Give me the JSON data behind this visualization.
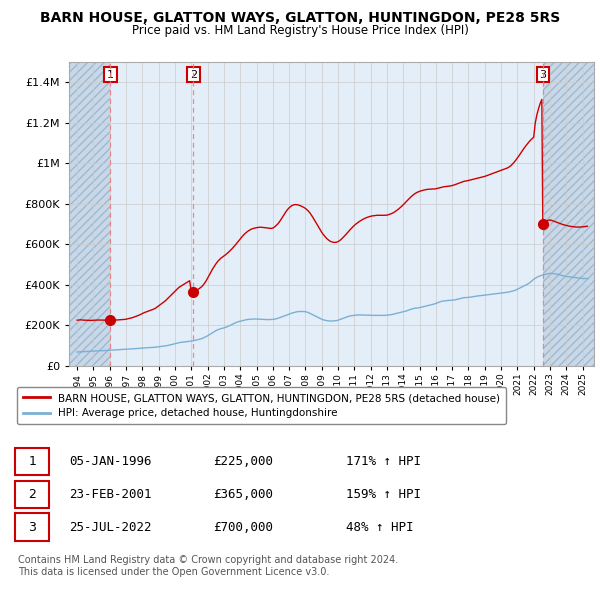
{
  "title": "BARN HOUSE, GLATTON WAYS, GLATTON, HUNTINGDON, PE28 5RS",
  "subtitle": "Price paid vs. HM Land Registry's House Price Index (HPI)",
  "title_fontsize": 10,
  "subtitle_fontsize": 8.5,
  "ylim": [
    0,
    1500000
  ],
  "yticks": [
    0,
    200000,
    400000,
    600000,
    800000,
    1000000,
    1200000,
    1400000
  ],
  "ytick_labels": [
    "£0",
    "£200K",
    "£400K",
    "£600K",
    "£800K",
    "£1M",
    "£1.2M",
    "£1.4M"
  ],
  "xlim_start": 1993.5,
  "xlim_end": 2025.7,
  "sale_dates": [
    1996.03,
    2001.12,
    2022.56
  ],
  "sale_prices": [
    225000,
    365000,
    700000
  ],
  "sale_labels": [
    "1",
    "2",
    "3"
  ],
  "red_line_color": "#cc0000",
  "blue_line_color": "#7ab0d4",
  "dashed_line_color": "#e88080",
  "hatch_color": "#c8d8e8",
  "active_bg_color": "#e4eef8",
  "annotation_box_color": "#cc0000",
  "legend_red_label": "BARN HOUSE, GLATTON WAYS, GLATTON, HUNTINGDON, PE28 5RS (detached house)",
  "legend_blue_label": "HPI: Average price, detached house, Huntingdonshire",
  "table_rows": [
    [
      "1",
      "05-JAN-1996",
      "£225,000",
      "171% ↑ HPI"
    ],
    [
      "2",
      "23-FEB-2001",
      "£365,000",
      "159% ↑ HPI"
    ],
    [
      "3",
      "25-JUL-2022",
      "£700,000",
      "48% ↑ HPI"
    ]
  ],
  "footer_text": "Contains HM Land Registry data © Crown copyright and database right 2024.\nThis data is licensed under the Open Government Licence v3.0.",
  "hpi_x": [
    1994.0,
    1994.1,
    1994.2,
    1994.3,
    1994.4,
    1994.5,
    1994.6,
    1994.7,
    1994.8,
    1994.9,
    1995.0,
    1995.1,
    1995.2,
    1995.3,
    1995.4,
    1995.5,
    1995.6,
    1995.7,
    1995.8,
    1995.9,
    1996.0,
    1996.1,
    1996.2,
    1996.3,
    1996.4,
    1996.5,
    1996.6,
    1996.7,
    1996.8,
    1996.9,
    1997.0,
    1997.1,
    1997.2,
    1997.3,
    1997.4,
    1997.5,
    1997.6,
    1997.7,
    1997.8,
    1997.9,
    1998.0,
    1998.1,
    1998.2,
    1998.3,
    1998.4,
    1998.5,
    1998.6,
    1998.7,
    1998.8,
    1998.9,
    1999.0,
    1999.1,
    1999.2,
    1999.3,
    1999.4,
    1999.5,
    1999.6,
    1999.7,
    1999.8,
    1999.9,
    2000.0,
    2000.1,
    2000.2,
    2000.3,
    2000.4,
    2000.5,
    2000.6,
    2000.7,
    2000.8,
    2000.9,
    2001.0,
    2001.1,
    2001.2,
    2001.3,
    2001.4,
    2001.5,
    2001.6,
    2001.7,
    2001.8,
    2001.9,
    2002.0,
    2002.1,
    2002.2,
    2002.3,
    2002.4,
    2002.5,
    2002.6,
    2002.7,
    2002.8,
    2002.9,
    2003.0,
    2003.1,
    2003.2,
    2003.3,
    2003.4,
    2003.5,
    2003.6,
    2003.7,
    2003.8,
    2003.9,
    2004.0,
    2004.1,
    2004.2,
    2004.3,
    2004.4,
    2004.5,
    2004.6,
    2004.7,
    2004.8,
    2004.9,
    2005.0,
    2005.1,
    2005.2,
    2005.3,
    2005.4,
    2005.5,
    2005.6,
    2005.7,
    2005.8,
    2005.9,
    2006.0,
    2006.1,
    2006.2,
    2006.3,
    2006.4,
    2006.5,
    2006.6,
    2006.7,
    2006.8,
    2006.9,
    2007.0,
    2007.1,
    2007.2,
    2007.3,
    2007.4,
    2007.5,
    2007.6,
    2007.7,
    2007.8,
    2007.9,
    2008.0,
    2008.1,
    2008.2,
    2008.3,
    2008.4,
    2008.5,
    2008.6,
    2008.7,
    2008.8,
    2008.9,
    2009.0,
    2009.1,
    2009.2,
    2009.3,
    2009.4,
    2009.5,
    2009.6,
    2009.7,
    2009.8,
    2009.9,
    2010.0,
    2010.1,
    2010.2,
    2010.3,
    2010.4,
    2010.5,
    2010.6,
    2010.7,
    2010.8,
    2010.9,
    2011.0,
    2011.1,
    2011.2,
    2011.3,
    2011.4,
    2011.5,
    2011.6,
    2011.7,
    2011.8,
    2011.9,
    2012.0,
    2012.1,
    2012.2,
    2012.3,
    2012.4,
    2012.5,
    2012.6,
    2012.7,
    2012.8,
    2012.9,
    2013.0,
    2013.1,
    2013.2,
    2013.3,
    2013.4,
    2013.5,
    2013.6,
    2013.7,
    2013.8,
    2013.9,
    2014.0,
    2014.1,
    2014.2,
    2014.3,
    2014.4,
    2014.5,
    2014.6,
    2014.7,
    2014.8,
    2014.9,
    2015.0,
    2015.1,
    2015.2,
    2015.3,
    2015.4,
    2015.5,
    2015.6,
    2015.7,
    2015.8,
    2015.9,
    2016.0,
    2016.1,
    2016.2,
    2016.3,
    2016.4,
    2016.5,
    2016.6,
    2016.7,
    2016.8,
    2016.9,
    2017.0,
    2017.1,
    2017.2,
    2017.3,
    2017.4,
    2017.5,
    2017.6,
    2017.7,
    2017.8,
    2017.9,
    2018.0,
    2018.1,
    2018.2,
    2018.3,
    2018.4,
    2018.5,
    2018.6,
    2018.7,
    2018.8,
    2018.9,
    2019.0,
    2019.1,
    2019.2,
    2019.3,
    2019.4,
    2019.5,
    2019.6,
    2019.7,
    2019.8,
    2019.9,
    2020.0,
    2020.1,
    2020.2,
    2020.3,
    2020.4,
    2020.5,
    2020.6,
    2020.7,
    2020.8,
    2020.9,
    2021.0,
    2021.1,
    2021.2,
    2021.3,
    2021.4,
    2021.5,
    2021.6,
    2021.7,
    2021.8,
    2021.9,
    2022.0,
    2022.1,
    2022.2,
    2022.3,
    2022.4,
    2022.5,
    2022.6,
    2022.7,
    2022.8,
    2022.9,
    2023.0,
    2023.1,
    2023.2,
    2023.3,
    2023.4,
    2023.5,
    2023.6,
    2023.7,
    2023.8,
    2023.9,
    2024.0,
    2024.1,
    2024.2,
    2024.3,
    2024.4,
    2024.5,
    2024.6,
    2024.7,
    2024.8,
    2024.9,
    2025.0,
    2025.1,
    2025.2,
    2025.3
  ],
  "hpi_y": [
    68000,
    68500,
    69000,
    69500,
    70000,
    70500,
    71000,
    71500,
    72000,
    72500,
    73000,
    73500,
    74000,
    74000,
    74200,
    74500,
    74800,
    75200,
    75700,
    76500,
    77000,
    77500,
    78000,
    78500,
    79000,
    79500,
    80000,
    80500,
    81000,
    81500,
    82000,
    82500,
    83000,
    83500,
    84000,
    84500,
    85000,
    85500,
    86000,
    86800,
    87500,
    88000,
    88500,
    89000,
    89500,
    90000,
    90500,
    91000,
    91800,
    93000,
    94000,
    95000,
    96000,
    97000,
    98000,
    99500,
    101000,
    103000,
    105000,
    107000,
    109000,
    111000,
    113000,
    115000,
    116000,
    117000,
    118000,
    119000,
    120000,
    121000,
    122000,
    123000,
    125000,
    127000,
    129000,
    131000,
    133000,
    136000,
    140000,
    144000,
    148000,
    153000,
    158000,
    163000,
    168000,
    173000,
    177000,
    180000,
    183000,
    185000,
    187000,
    190000,
    193000,
    197000,
    200000,
    204000,
    208000,
    212000,
    215000,
    218000,
    220000,
    222000,
    224000,
    226000,
    228000,
    229000,
    230000,
    230500,
    231000,
    231000,
    231000,
    230500,
    230000,
    229500,
    229000,
    228500,
    228000,
    228000,
    228000,
    228500,
    229000,
    230000,
    232000,
    234000,
    237000,
    240000,
    243000,
    246000,
    249000,
    252000,
    255000,
    258000,
    261000,
    263000,
    265000,
    267000,
    268000,
    268000,
    268000,
    268000,
    267000,
    265000,
    262000,
    258000,
    254000,
    250000,
    246000,
    242000,
    238000,
    234000,
    230000,
    227000,
    225000,
    223000,
    222000,
    221000,
    221000,
    221500,
    222000,
    223000,
    225000,
    228000,
    231000,
    234000,
    237000,
    240000,
    243000,
    245000,
    247000,
    248000,
    249000,
    250000,
    251000,
    251000,
    251000,
    251000,
    250000,
    250000,
    250000,
    250000,
    249000,
    249000,
    249000,
    249000,
    249000,
    249000,
    249000,
    249000,
    249000,
    249000,
    250000,
    251000,
    252000,
    253000,
    255000,
    257000,
    259000,
    261000,
    263000,
    265000,
    267000,
    269000,
    271000,
    274000,
    277000,
    280000,
    282000,
    284000,
    285000,
    286000,
    287000,
    289000,
    291000,
    293000,
    295000,
    297000,
    299000,
    301000,
    303000,
    305000,
    308000,
    311000,
    314000,
    317000,
    319000,
    320000,
    321000,
    322000,
    323000,
    323000,
    324000,
    325000,
    326000,
    328000,
    330000,
    332000,
    334000,
    336000,
    337000,
    337000,
    338000,
    339000,
    340000,
    341000,
    343000,
    344000,
    345000,
    346000,
    347000,
    348000,
    349000,
    350000,
    351000,
    352000,
    353000,
    354000,
    355000,
    356000,
    357000,
    358000,
    359000,
    360000,
    361000,
    362000,
    363000,
    365000,
    367000,
    369000,
    371000,
    374000,
    378000,
    382000,
    386000,
    390000,
    394000,
    398000,
    402000,
    407000,
    413000,
    420000,
    427000,
    432000,
    437000,
    441000,
    444000,
    447000,
    449000,
    451000,
    453000,
    455000,
    456000,
    456000,
    455000,
    454000,
    453000,
    451000,
    449000,
    447000,
    445000,
    443000,
    441000,
    440000,
    439000,
    438000,
    437000,
    436000,
    435000,
    434000,
    433000,
    432000,
    431000,
    431000,
    431000,
    431000
  ],
  "red_x": [
    1994.0,
    1994.1,
    1994.2,
    1994.3,
    1994.4,
    1994.5,
    1994.6,
    1994.7,
    1994.8,
    1994.9,
    1995.0,
    1995.1,
    1995.2,
    1995.3,
    1995.4,
    1995.5,
    1995.6,
    1995.7,
    1995.8,
    1995.9,
    1996.0,
    1996.1,
    1996.2,
    1996.3,
    1996.4,
    1996.5,
    1996.6,
    1996.7,
    1996.8,
    1996.9,
    1997.0,
    1997.1,
    1997.2,
    1997.3,
    1997.4,
    1997.5,
    1997.6,
    1997.7,
    1997.8,
    1997.9,
    1998.0,
    1998.1,
    1998.2,
    1998.3,
    1998.4,
    1998.5,
    1998.6,
    1998.7,
    1998.8,
    1998.9,
    1999.0,
    1999.1,
    1999.2,
    1999.3,
    1999.4,
    1999.5,
    1999.6,
    1999.7,
    1999.8,
    1999.9,
    2000.0,
    2000.1,
    2000.2,
    2000.3,
    2000.4,
    2000.5,
    2000.6,
    2000.7,
    2000.8,
    2000.9,
    2001.0,
    2001.1,
    2001.2,
    2001.3,
    2001.4,
    2001.5,
    2001.6,
    2001.7,
    2001.8,
    2001.9,
    2002.0,
    2002.1,
    2002.2,
    2002.3,
    2002.4,
    2002.5,
    2002.6,
    2002.7,
    2002.8,
    2002.9,
    2003.0,
    2003.1,
    2003.2,
    2003.3,
    2003.4,
    2003.5,
    2003.6,
    2003.7,
    2003.8,
    2003.9,
    2004.0,
    2004.1,
    2004.2,
    2004.3,
    2004.4,
    2004.5,
    2004.6,
    2004.7,
    2004.8,
    2004.9,
    2005.0,
    2005.1,
    2005.2,
    2005.3,
    2005.4,
    2005.5,
    2005.6,
    2005.7,
    2005.8,
    2005.9,
    2006.0,
    2006.1,
    2006.2,
    2006.3,
    2006.4,
    2006.5,
    2006.6,
    2006.7,
    2006.8,
    2006.9,
    2007.0,
    2007.1,
    2007.2,
    2007.3,
    2007.4,
    2007.5,
    2007.6,
    2007.7,
    2007.8,
    2007.9,
    2008.0,
    2008.1,
    2008.2,
    2008.3,
    2008.4,
    2008.5,
    2008.6,
    2008.7,
    2008.8,
    2008.9,
    2009.0,
    2009.1,
    2009.2,
    2009.3,
    2009.4,
    2009.5,
    2009.6,
    2009.7,
    2009.8,
    2009.9,
    2010.0,
    2010.1,
    2010.2,
    2010.3,
    2010.4,
    2010.5,
    2010.6,
    2010.7,
    2010.8,
    2010.9,
    2011.0,
    2011.1,
    2011.2,
    2011.3,
    2011.4,
    2011.5,
    2011.6,
    2011.7,
    2011.8,
    2011.9,
    2012.0,
    2012.1,
    2012.2,
    2012.3,
    2012.4,
    2012.5,
    2012.6,
    2012.7,
    2012.8,
    2012.9,
    2013.0,
    2013.1,
    2013.2,
    2013.3,
    2013.4,
    2013.5,
    2013.6,
    2013.7,
    2013.8,
    2013.9,
    2014.0,
    2014.1,
    2014.2,
    2014.3,
    2014.4,
    2014.5,
    2014.6,
    2014.7,
    2014.8,
    2014.9,
    2015.0,
    2015.1,
    2015.2,
    2015.3,
    2015.4,
    2015.5,
    2015.6,
    2015.7,
    2015.8,
    2015.9,
    2016.0,
    2016.1,
    2016.2,
    2016.3,
    2016.4,
    2016.5,
    2016.6,
    2016.7,
    2016.8,
    2016.9,
    2017.0,
    2017.1,
    2017.2,
    2017.3,
    2017.4,
    2017.5,
    2017.6,
    2017.7,
    2017.8,
    2017.9,
    2018.0,
    2018.1,
    2018.2,
    2018.3,
    2018.4,
    2018.5,
    2018.6,
    2018.7,
    2018.8,
    2018.9,
    2019.0,
    2019.1,
    2019.2,
    2019.3,
    2019.4,
    2019.5,
    2019.6,
    2019.7,
    2019.8,
    2019.9,
    2020.0,
    2020.1,
    2020.2,
    2020.3,
    2020.4,
    2020.5,
    2020.6,
    2020.7,
    2020.8,
    2020.9,
    2021.0,
    2021.1,
    2021.2,
    2021.3,
    2021.4,
    2021.5,
    2021.6,
    2021.7,
    2021.8,
    2021.9,
    2022.0,
    2022.1,
    2022.2,
    2022.3,
    2022.4,
    2022.5,
    2022.56,
    2022.7,
    2022.8,
    2022.9,
    2023.0,
    2023.1,
    2023.2,
    2023.3,
    2023.4,
    2023.5,
    2023.6,
    2023.7,
    2023.8,
    2023.9,
    2024.0,
    2024.1,
    2024.2,
    2024.3,
    2024.4,
    2024.5,
    2024.6,
    2024.7,
    2024.8,
    2024.9,
    2025.0,
    2025.1,
    2025.2,
    2025.3
  ],
  "red_y": [
    225000,
    226000,
    227000,
    226000,
    225500,
    225000,
    224500,
    224000,
    224000,
    224500,
    225000,
    225500,
    226000,
    226000,
    225800,
    225500,
    225200,
    225000,
    224800,
    224600,
    225000,
    225200,
    225500,
    225800,
    226000,
    226500,
    227000,
    227500,
    228000,
    229000,
    230000,
    232000,
    234000,
    236000,
    238000,
    241000,
    244000,
    247000,
    250000,
    254000,
    258000,
    262000,
    265000,
    268000,
    271000,
    274000,
    277000,
    280000,
    284000,
    290000,
    296000,
    302000,
    308000,
    314000,
    320000,
    328000,
    336000,
    344000,
    352000,
    360000,
    368000,
    376000,
    384000,
    390000,
    395000,
    400000,
    405000,
    410000,
    415000,
    420000,
    365000,
    366000,
    368000,
    372000,
    376000,
    382000,
    388000,
    396000,
    406000,
    418000,
    432000,
    447000,
    462000,
    477000,
    490000,
    502000,
    513000,
    522000,
    530000,
    536000,
    542000,
    548000,
    555000,
    562000,
    570000,
    578000,
    587000,
    596000,
    606000,
    616000,
    626000,
    636000,
    645000,
    653000,
    660000,
    666000,
    671000,
    675000,
    678000,
    680000,
    682000,
    683000,
    684000,
    684000,
    683000,
    682000,
    681000,
    680000,
    679000,
    678000,
    680000,
    685000,
    692000,
    700000,
    710000,
    722000,
    735000,
    748000,
    760000,
    771000,
    780000,
    787000,
    792000,
    795000,
    796000,
    795000,
    793000,
    790000,
    786000,
    782000,
    777000,
    770000,
    762000,
    752000,
    740000,
    727000,
    713000,
    700000,
    686000,
    672000,
    659000,
    648000,
    638000,
    629000,
    622000,
    616000,
    612000,
    610000,
    609000,
    610000,
    613000,
    618000,
    625000,
    633000,
    641000,
    650000,
    659000,
    668000,
    677000,
    685000,
    693000,
    700000,
    706000,
    712000,
    717000,
    722000,
    726000,
    730000,
    733000,
    736000,
    738000,
    740000,
    741000,
    742000,
    743000,
    743000,
    743000,
    743000,
    743000,
    743000,
    744000,
    746000,
    749000,
    752000,
    756000,
    761000,
    767000,
    773000,
    780000,
    787000,
    795000,
    803000,
    812000,
    820000,
    828000,
    836000,
    843000,
    849000,
    854000,
    858000,
    861000,
    864000,
    866000,
    868000,
    870000,
    871000,
    872000,
    872000,
    873000,
    873000,
    874000,
    876000,
    878000,
    880000,
    882000,
    884000,
    885000,
    886000,
    887000,
    888000,
    890000,
    892000,
    895000,
    898000,
    901000,
    904000,
    907000,
    910000,
    912000,
    913000,
    915000,
    917000,
    919000,
    921000,
    923000,
    925000,
    927000,
    929000,
    931000,
    933000,
    935000,
    938000,
    941000,
    944000,
    947000,
    950000,
    953000,
    956000,
    959000,
    962000,
    965000,
    968000,
    971000,
    974000,
    977000,
    982000,
    988000,
    996000,
    1005000,
    1015000,
    1026000,
    1037000,
    1049000,
    1061000,
    1073000,
    1084000,
    1094000,
    1104000,
    1113000,
    1121000,
    1128000,
    1200000,
    1240000,
    1270000,
    1295000,
    1315000,
    700000,
    710000,
    715000,
    718000,
    720000,
    718000,
    715000,
    712000,
    709000,
    706000,
    703000,
    700000,
    697000,
    695000,
    693000,
    691000,
    689000,
    688000,
    687000,
    686000,
    685000,
    685000,
    685000,
    685000,
    686000,
    687000,
    688000,
    689000
  ]
}
